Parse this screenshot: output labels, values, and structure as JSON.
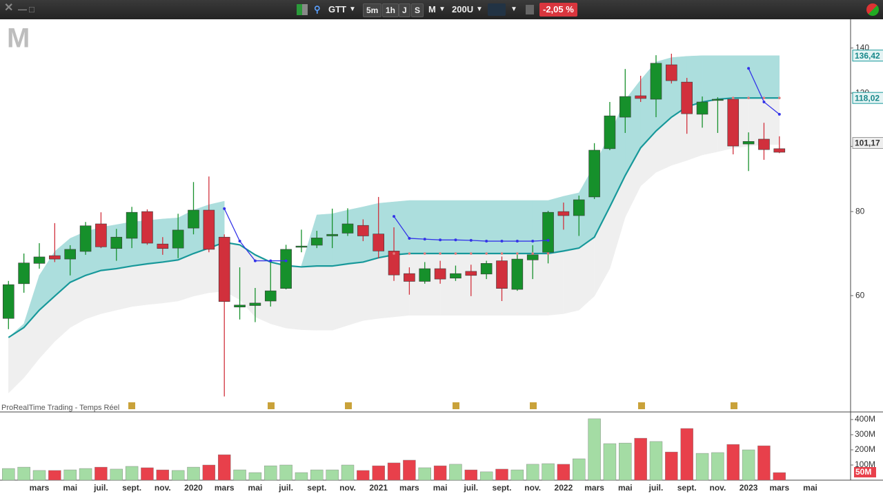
{
  "toolbar": {
    "symbol": "GTT",
    "intervals": [
      "5m",
      "1h",
      "J",
      "S",
      "M"
    ],
    "units": "200U",
    "change": "-2,05 %"
  },
  "footer": "ProRealTime Trading - Temps Réel",
  "chart_data": [
    {
      "type": "candlestick",
      "watermark": "M",
      "log_scale": true,
      "ylim": [
        40.3,
        154.1
      ],
      "yticks": [
        60,
        80,
        100,
        120,
        140
      ],
      "up_color": "#16902b",
      "down_color": "#d1303c",
      "band_color": "#acdedd",
      "lower_fill_color": "#efefef",
      "middle_color": "#17989a",
      "signal_color": "#3434e8",
      "dots_color": "#e07a7a",
      "open": [
        55.5,
        62.5,
        67.0,
        68.8,
        68.0,
        69.8,
        76.7,
        70.5,
        73.0,
        80.0,
        71.6,
        70.6,
        75.6,
        80.4,
        73.3,
        57.7,
        58.0,
        58.9,
        61.5,
        70.8,
        71.3,
        73.6,
        74.3,
        76.3,
        74.1,
        69.9,
        64.7,
        63.0,
        65.8,
        63.7,
        65.2,
        64.6,
        67.6,
        61.3,
        67.8,
        69.6,
        80.0,
        78.9,
        84.1,
        99.2,
        110.5,
        118.9,
        117.5,
        132.2,
        124.6,
        111.6,
        117.0,
        117.5,
        100.8,
        102.5,
        99.2,
        null,
        null
      ],
      "high": [
        63.1,
        69.3,
        71.8,
        76.9,
        71.3,
        77.2,
        79.8,
        75.4,
        81.3,
        80.6,
        73.3,
        79.4,
        88.5,
        90.2,
        74.0,
        66.1,
        61.6,
        67.6,
        71.4,
        75.2,
        74.9,
        80.8,
        80.9,
        77.9,
        84.1,
        75.8,
        66.1,
        67.3,
        67.6,
        66.5,
        66.7,
        67.6,
        68.6,
        69.0,
        71.3,
        80.2,
        82.5,
        84.5,
        101.1,
        116.4,
        130.3,
        127.3,
        136.6,
        137.3,
        126.4,
        118.6,
        118.3,
        118.3,
        104.9,
        108.4,
        103.5,
        null,
        null
      ],
      "low": [
        53.5,
        60.6,
        65.8,
        67.3,
        64.3,
        69.0,
        70.6,
        67.6,
        70.6,
        71.4,
        69.0,
        68.2,
        74.0,
        69.6,
        42.5,
        55.3,
        54.8,
        57.8,
        61.3,
        69.6,
        70.6,
        70.6,
        73.6,
        72.3,
        68.2,
        63.1,
        60.2,
        62.5,
        62.5,
        63.1,
        59.9,
        63.5,
        58.9,
        61.0,
        63.5,
        67.0,
        75.2,
        73.6,
        83.5,
        98.7,
        104.7,
        116.4,
        110.5,
        124.0,
        104.4,
        106.6,
        104.7,
        97.3,
        91.9,
        95.5,
        97.7,
        null,
        null
      ],
      "close": [
        62.3,
        67.1,
        68.5,
        68.0,
        70.3,
        76.2,
        70.9,
        73.3,
        79.8,
        71.8,
        70.5,
        75.1,
        80.4,
        70.3,
        58.8,
        58.1,
        58.5,
        61.0,
        70.3,
        71.1,
        73.1,
        74.0,
        76.7,
        73.6,
        69.9,
        64.4,
        63.0,
        65.8,
        63.5,
        64.7,
        64.3,
        67.0,
        61.5,
        68.0,
        69.0,
        79.8,
        78.9,
        83.3,
        98.7,
        111.0,
        118.6,
        117.8,
        132.9,
        125.2,
        111.8,
        116.4,
        117.5,
        100.1,
        101.7,
        98.9,
        98.0,
        null,
        null
      ],
      "upper_band": [
        52.0,
        54.5,
        64.3,
        69.8,
        73.0,
        74.7,
        75.8,
        76.5,
        77.2,
        77.6,
        78.0,
        78.3,
        80.4,
        81.9,
        82.9,
        null,
        null,
        null,
        null,
        66.5,
        79.1,
        79.4,
        80.4,
        81.3,
        82.3,
        82.7,
        83.1,
        83.1,
        83.1,
        83.1,
        83.1,
        83.1,
        83.1,
        83.1,
        83.1,
        83.1,
        84.3,
        85.3,
        93.7,
        104.2,
        117.2,
        125.5,
        133.5,
        135.5,
        136.1,
        136.4,
        136.4,
        136.4,
        136.4,
        136.4,
        136.4,
        null,
        null
      ],
      "middle_line": [
        52.0,
        53.8,
        57.1,
        59.9,
        62.8,
        64.3,
        65.4,
        65.8,
        66.4,
        66.9,
        67.3,
        67.8,
        69.3,
        70.6,
        72.0,
        71.4,
        69.0,
        67.3,
        66.5,
        66.2,
        66.4,
        66.4,
        66.9,
        67.3,
        68.3,
        69.0,
        69.3,
        69.3,
        69.3,
        69.3,
        69.3,
        69.3,
        69.3,
        69.3,
        69.3,
        69.3,
        69.9,
        70.6,
        73.3,
        81.3,
        90.5,
        99.5,
        105.4,
        110.5,
        114.5,
        116.4,
        117.5,
        118.0,
        118.0,
        118.0,
        118.0,
        null,
        null
      ],
      "lower_band": [
        43.0,
        45.3,
        48.4,
        51.3,
        53.8,
        55.4,
        56.4,
        57.1,
        57.8,
        58.2,
        58.5,
        58.9,
        59.9,
        60.6,
        60.9,
        59.2,
        55.8,
        54.5,
        53.7,
        53.4,
        53.3,
        53.3,
        54.2,
        55.1,
        55.5,
        55.8,
        56.1,
        56.1,
        56.1,
        56.1,
        56.1,
        56.1,
        56.1,
        56.1,
        56.1,
        56.1,
        56.4,
        57.1,
        59.9,
        65.8,
        78.5,
        87.3,
        91.5,
        93.7,
        95.3,
        97.1,
        98.2,
        99.4,
        100.1,
        100.6,
        100.6,
        null,
        null
      ],
      "signal_line": [
        null,
        null,
        null,
        null,
        null,
        null,
        null,
        null,
        null,
        null,
        null,
        null,
        null,
        null,
        80.8,
        72.3,
        67.6,
        67.6,
        67.6,
        null,
        null,
        null,
        null,
        null,
        null,
        78.7,
        73.0,
        72.8,
        72.6,
        72.6,
        72.5,
        72.3,
        72.3,
        72.3,
        72.3,
        72.5,
        null,
        null,
        null,
        null,
        null,
        null,
        null,
        null,
        null,
        null,
        null,
        null,
        130.6,
        116.4,
        111.6,
        null,
        null
      ],
      "signal_dots": [
        null,
        null,
        null,
        null,
        null,
        null,
        null,
        null,
        null,
        null,
        null,
        null,
        null,
        null,
        null,
        null,
        null,
        null,
        null,
        null,
        null,
        null,
        null,
        null,
        null,
        69.3,
        69.3,
        69.3,
        69.3,
        69.3,
        69.3,
        69.3,
        69.3,
        69.3,
        69.3,
        69.3,
        null,
        null,
        null,
        null,
        null,
        null,
        null,
        null,
        null,
        null,
        null,
        118.0,
        118.0,
        118.0,
        118.0,
        null,
        null
      ],
      "price_markers": [
        {
          "value": 136.42,
          "label": "136,42",
          "fill": "#e4f4f4",
          "stroke": "#17989a",
          "text_color": "#17888a"
        },
        {
          "value": 118.02,
          "label": "118,02",
          "fill": "#e4f4f4",
          "stroke": "#17989a",
          "text_color": "#17888a"
        },
        {
          "value": 101.17,
          "label": "101,17",
          "fill": "#eeeeee",
          "stroke": "#9a9a9a",
          "text_color": "#333333"
        }
      ]
    },
    {
      "type": "bar",
      "ylim": [
        0,
        450
      ],
      "yticks": [
        {
          "value": 100,
          "label": "100M"
        },
        {
          "value": 200,
          "label": "200M"
        },
        {
          "value": 300,
          "label": "300M"
        },
        {
          "value": 400,
          "label": "400M"
        }
      ],
      "up_color": "#a4dca4",
      "down_color": "#e8404b",
      "categories": [
        null,
        null,
        "mars",
        null,
        "mai",
        null,
        "juil.",
        null,
        "sept.",
        null,
        "nov.",
        null,
        "2020",
        null,
        "mars",
        null,
        "mai",
        null,
        "juil.",
        null,
        "sept.",
        null,
        "nov.",
        null,
        "2021",
        null,
        "mars",
        null,
        "mai",
        null,
        "juil.",
        null,
        "sept.",
        null,
        "nov.",
        null,
        "2022",
        null,
        "mars",
        null,
        "mai",
        null,
        "juil.",
        null,
        "sept.",
        null,
        "nov.",
        null,
        "2023",
        null,
        "mars",
        null,
        "mai"
      ],
      "values": [
        77,
        86,
        64,
        64,
        68,
        77,
        86,
        73,
        91,
        82,
        68,
        64,
        86,
        100,
        168,
        68,
        50,
        95,
        100,
        50,
        68,
        68,
        100,
        64,
        95,
        114,
        132,
        82,
        95,
        105,
        68,
        55,
        73,
        68,
        105,
        109,
        105,
        141,
        405,
        241,
        245,
        277,
        255,
        186,
        341,
        177,
        182,
        236,
        200,
        227,
        50,
        null,
        null
      ],
      "current_marker": {
        "value": 50,
        "label": "50M",
        "fill": "#e8404b",
        "text_color": "#ffffff"
      }
    }
  ]
}
